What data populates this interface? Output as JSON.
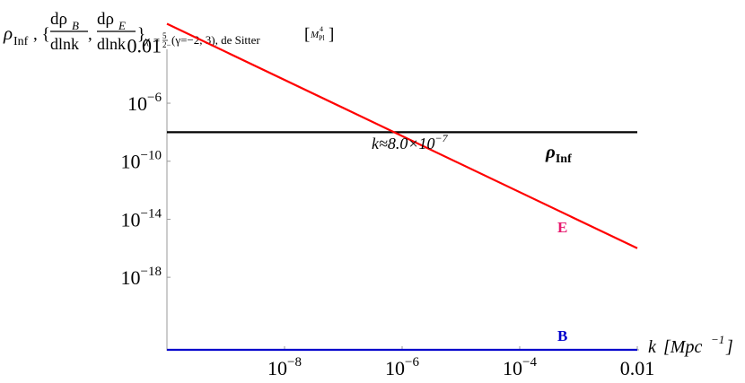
{
  "chart_data": {
    "type": "line",
    "title": "",
    "ylabel": "ρ_Inf, { dρ_B/dlnk , dρ_E/dlnk }_{χ=5/2 (γ=−2, 3), de Sitter} [M_Pl^4]",
    "ylabel_parts": {
      "rho": "ρ",
      "rho_sub": "Inf",
      "comma_brace": ", {",
      "d_rho": "dρ",
      "sub_b": "B",
      "sub_e": "E",
      "dlnk": "dlnk",
      "comma": ",",
      "close_brace": "}",
      "chi_label": "χ = ",
      "chi_num": "5",
      "chi_den": "2",
      "gamma_label": "(γ=−2, 3), de Sitter",
      "units_m": "M",
      "units_sub": "Pl",
      "units_sup": "4",
      "lbr": "[",
      "rbr": "]"
    },
    "xlabel": "k [Mpc⁻¹]",
    "xlabel_parts": {
      "k": "k",
      "unit": "[Mpc",
      "sup": "−1",
      "close": "]"
    },
    "x_scale": "log",
    "y_scale": "log",
    "xlim": [
      1e-10,
      0.01
    ],
    "ylim": [
      1e-23,
      1.0
    ],
    "grid": false,
    "x_ticks": [
      {
        "value": 1e-08,
        "base": "10",
        "exp": "−8"
      },
      {
        "value": 1e-06,
        "base": "10",
        "exp": "−6"
      },
      {
        "value": 0.0001,
        "base": "10",
        "exp": "−4"
      },
      {
        "value": 0.01,
        "text": "0.01"
      }
    ],
    "y_ticks": [
      {
        "value": 0.01,
        "text": "0.01"
      },
      {
        "value": 1e-06,
        "base": "10",
        "exp": "−6"
      },
      {
        "value": 1e-10,
        "base": "10",
        "exp": "−10"
      },
      {
        "value": 1e-14,
        "base": "10",
        "exp": "−14"
      },
      {
        "value": 1e-18,
        "base": "10",
        "exp": "−18"
      }
    ],
    "series": [
      {
        "name": "ρ_Inf",
        "label_main": "ρ",
        "label_sub": "Inf",
        "color": "#000000",
        "x": [
          1e-10,
          0.01
        ],
        "y": [
          1e-08,
          1e-08
        ]
      },
      {
        "name": "E",
        "label_main": "E",
        "color": "#ff0000",
        "label_color": "#e8196e",
        "x": [
          1e-10,
          0.01
        ],
        "y": [
          0.3,
          1e-16
        ]
      },
      {
        "name": "B",
        "label_main": "B",
        "color": "#0000cc",
        "x": [
          1e-10,
          0.01
        ],
        "y": [
          1e-23,
          1e-23
        ]
      }
    ],
    "annotations": [
      {
        "text": "k≈8.0×10⁻⁷",
        "parts": {
          "pre": "k≈8.0×10",
          "sup": "−7"
        },
        "x": 8e-07,
        "y": 1e-08
      }
    ]
  }
}
